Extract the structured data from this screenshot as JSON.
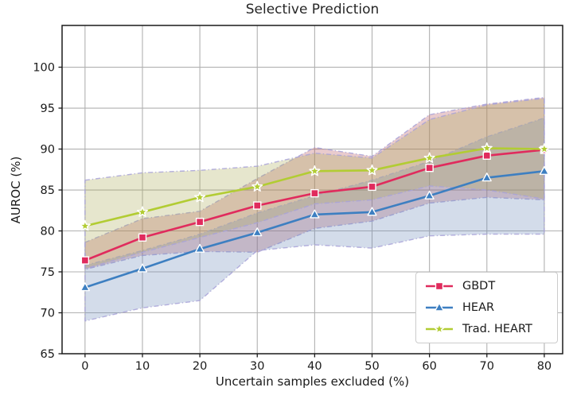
{
  "title": "Selective Prediction",
  "chart_data": {
    "type": "line",
    "title": "Selective Prediction",
    "xlabel": "Uncertain samples excluded (%)",
    "ylabel": "AUROC (%)",
    "x": [
      0,
      10,
      20,
      30,
      40,
      50,
      60,
      70,
      80
    ],
    "xticks": [
      0,
      10,
      20,
      30,
      40,
      50,
      60,
      70,
      80
    ],
    "yticks": [
      65,
      70,
      75,
      80,
      85,
      90,
      95,
      100
    ],
    "xlim": [
      -4,
      83.2
    ],
    "ylim": [
      65,
      105.1
    ],
    "grid": true,
    "grid_color": "#b1b1b1",
    "axis_color": "#1a1a1a",
    "band_edge_color": "#a8a2d8",
    "legend_position": "lower right",
    "series": [
      {
        "name": "GBDT",
        "color": "#e02b5d",
        "marker": "square",
        "line_style": "solid",
        "values": [
          76.4,
          79.2,
          81.1,
          83.1,
          84.6,
          85.4,
          87.7,
          89.2,
          89.9
        ],
        "band_lower": [
          75.3,
          77.0,
          77.5,
          77.4,
          80.3,
          81.2,
          83.4,
          84.1,
          83.8
        ],
        "band_upper": [
          78.6,
          81.5,
          82.4,
          86.4,
          90.2,
          89.1,
          94.2,
          95.5,
          96.3
        ],
        "band_color": "#b65258"
      },
      {
        "name": "HEAR",
        "color": "#3d7fc1",
        "marker": "triangle",
        "line_style": "solid",
        "values": [
          73.1,
          75.4,
          77.8,
          79.8,
          82.0,
          82.3,
          84.3,
          86.5,
          87.3
        ],
        "band_lower": [
          69.0,
          70.6,
          71.5,
          77.6,
          78.3,
          77.9,
          79.4,
          79.6,
          79.6
        ],
        "band_upper": [
          75.8,
          77.6,
          79.6,
          82.2,
          84.3,
          86.2,
          88.5,
          91.5,
          93.8
        ],
        "band_color": "#6c8ab9"
      },
      {
        "name": "Trad. HEART",
        "color": "#b2cc33",
        "marker": "star",
        "line_style": "solid",
        "values": [
          80.6,
          82.3,
          84.1,
          85.4,
          87.3,
          87.4,
          88.9,
          90.1,
          90.0
        ],
        "band_lower": [
          75.4,
          77.4,
          79.2,
          81.0,
          83.3,
          83.8,
          85.5,
          85.0,
          83.9
        ],
        "band_upper": [
          86.2,
          87.1,
          87.4,
          87.9,
          89.5,
          88.9,
          93.6,
          95.4,
          96.2
        ],
        "band_color": "#acac58"
      }
    ]
  }
}
